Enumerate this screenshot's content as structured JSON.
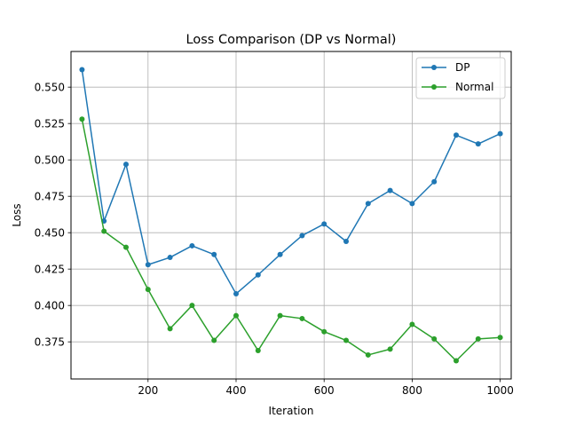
{
  "chart_data": {
    "type": "line",
    "title": "Loss Comparison (DP vs Normal)",
    "xlabel": "Iteration",
    "ylabel": "Loss",
    "xlim": [
      25,
      1025
    ],
    "ylim": [
      0.3495,
      0.5745
    ],
    "xticks": [
      200,
      400,
      600,
      800,
      1000
    ],
    "yticks": [
      0.375,
      0.4,
      0.425,
      0.45,
      0.475,
      0.5,
      0.525,
      0.55
    ],
    "grid": true,
    "legend_position": "top-right",
    "x": [
      50,
      100,
      150,
      200,
      250,
      300,
      350,
      400,
      450,
      500,
      550,
      600,
      650,
      700,
      750,
      800,
      850,
      900,
      950,
      1000
    ],
    "series": [
      {
        "name": "DP",
        "color": "#1f77b4",
        "values": [
          0.562,
          0.458,
          0.497,
          0.428,
          0.433,
          0.441,
          0.435,
          0.408,
          0.421,
          0.435,
          0.448,
          0.456,
          0.444,
          0.47,
          0.479,
          0.47,
          0.485,
          0.517,
          0.511,
          0.518
        ]
      },
      {
        "name": "Normal",
        "color": "#2ca02c",
        "values": [
          0.528,
          0.451,
          0.44,
          0.411,
          0.384,
          0.4,
          0.376,
          0.393,
          0.369,
          0.393,
          0.391,
          0.382,
          0.376,
          0.366,
          0.37,
          0.387,
          0.377,
          0.362,
          0.377,
          0.378
        ]
      }
    ]
  }
}
